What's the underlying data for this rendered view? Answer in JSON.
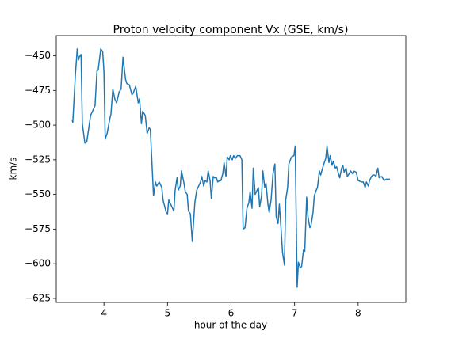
{
  "chart_data": {
    "type": "line",
    "title": "Proton velocity component Vx (GSE, km/s)",
    "xlabel": "hour of the day",
    "ylabel": "km/s",
    "color": "#1f77b4",
    "xlim": [
      3.25,
      8.75
    ],
    "ylim": [
      -627.9,
      -435.4
    ],
    "xticks": [
      4,
      5,
      6,
      7,
      8
    ],
    "yticks": [
      {
        "value": -625,
        "label": "−625"
      },
      {
        "value": -600,
        "label": "−600"
      },
      {
        "value": -575,
        "label": "−575"
      },
      {
        "value": -550,
        "label": "−550"
      },
      {
        "value": -525,
        "label": "−525"
      },
      {
        "value": -500,
        "label": "−500"
      },
      {
        "value": -475,
        "label": "−475"
      },
      {
        "value": -450,
        "label": "−450"
      }
    ],
    "x": [
      3.5,
      3.51,
      3.55,
      3.58,
      3.6,
      3.61,
      3.64,
      3.66,
      3.7,
      3.73,
      3.79,
      3.86,
      3.89,
      3.91,
      3.95,
      3.98,
      4.0,
      4.02,
      4.05,
      4.09,
      4.11,
      4.14,
      4.17,
      4.2,
      4.24,
      4.27,
      4.3,
      4.34,
      4.36,
      4.4,
      4.44,
      4.46,
      4.5,
      4.54,
      4.56,
      4.59,
      4.61,
      4.65,
      4.68,
      4.71,
      4.73,
      4.78,
      4.81,
      4.83,
      4.87,
      4.91,
      4.93,
      4.98,
      5.0,
      5.02,
      5.06,
      5.1,
      5.12,
      5.15,
      5.17,
      5.2,
      5.22,
      5.26,
      5.28,
      5.31,
      5.33,
      5.36,
      5.38,
      5.39,
      5.43,
      5.46,
      5.48,
      5.52,
      5.54,
      5.57,
      5.59,
      5.62,
      5.64,
      5.67,
      5.69,
      5.72,
      5.74,
      5.77,
      5.79,
      5.82,
      5.84,
      5.87,
      5.89,
      5.92,
      5.94,
      5.97,
      5.99,
      6.02,
      6.04,
      6.07,
      6.1,
      6.14,
      6.17,
      6.19,
      6.22,
      6.25,
      6.28,
      6.3,
      6.33,
      6.35,
      6.38,
      6.4,
      6.43,
      6.45,
      6.48,
      6.5,
      6.53,
      6.55,
      6.58,
      6.6,
      6.63,
      6.66,
      6.69,
      6.71,
      6.74,
      6.76,
      6.79,
      6.81,
      6.84,
      6.86,
      6.89,
      6.91,
      6.95,
      6.99,
      7.01,
      7.04,
      7.06,
      7.09,
      7.11,
      7.14,
      7.16,
      7.19,
      7.21,
      7.24,
      7.26,
      7.29,
      7.31,
      7.34,
      7.36,
      7.39,
      7.41,
      7.44,
      7.46,
      7.49,
      7.51,
      7.54,
      7.56,
      7.59,
      7.61,
      7.64,
      7.66,
      7.69,
      7.71,
      7.74,
      7.76,
      7.78,
      7.81,
      7.83,
      7.86,
      7.88,
      7.91,
      7.93,
      7.97,
      8.0,
      8.05,
      8.08,
      8.11,
      8.13,
      8.16,
      8.18,
      8.21,
      8.23,
      8.26,
      8.28,
      8.31,
      8.33,
      8.37,
      8.41,
      8.44,
      8.5
    ],
    "values": [
      -496,
      -498,
      -464,
      -445,
      -453,
      -451,
      -449,
      -499,
      -513,
      -512,
      -493,
      -486,
      -461,
      -460,
      -445,
      -447,
      -461,
      -510,
      -506,
      -496,
      -492,
      -474,
      -481,
      -484,
      -476,
      -474,
      -451,
      -467,
      -470,
      -471,
      -478,
      -477,
      -472,
      -484,
      -481,
      -499,
      -490,
      -493,
      -506,
      -502,
      -503,
      -551,
      -541,
      -544,
      -541,
      -545,
      -554,
      -563,
      -564,
      -554,
      -558,
      -562,
      -547,
      -538,
      -547,
      -544,
      -533,
      -542,
      -548,
      -550,
      -562,
      -564,
      -577,
      -584,
      -556,
      -547,
      -545,
      -541,
      -537,
      -544,
      -540,
      -541,
      -533,
      -540,
      -553,
      -537,
      -538,
      -538,
      -541,
      -540,
      -540,
      -535,
      -527,
      -537,
      -523,
      -525,
      -522,
      -525,
      -522,
      -524,
      -522,
      -522,
      -525,
      -575,
      -574,
      -560,
      -556,
      -548,
      -560,
      -531,
      -550,
      -548,
      -545,
      -559,
      -551,
      -533,
      -545,
      -542,
      -557,
      -563,
      -554,
      -535,
      -528,
      -566,
      -571,
      -557,
      -577,
      -592,
      -601,
      -554,
      -545,
      -528,
      -523,
      -522,
      -515,
      -617,
      -599,
      -603,
      -602,
      -590,
      -591,
      -552,
      -566,
      -574,
      -572,
      -563,
      -551,
      -547,
      -545,
      -533,
      -536,
      -531,
      -528,
      -524,
      -515,
      -527,
      -522,
      -529,
      -526,
      -531,
      -530,
      -535,
      -538,
      -531,
      -529,
      -534,
      -531,
      -537,
      -535,
      -533,
      -535,
      -533,
      -534,
      -540,
      -541,
      -541,
      -545,
      -541,
      -544,
      -540,
      -537,
      -536,
      -536,
      -537,
      -531,
      -538,
      -537,
      -540,
      -539,
      -539
    ]
  }
}
